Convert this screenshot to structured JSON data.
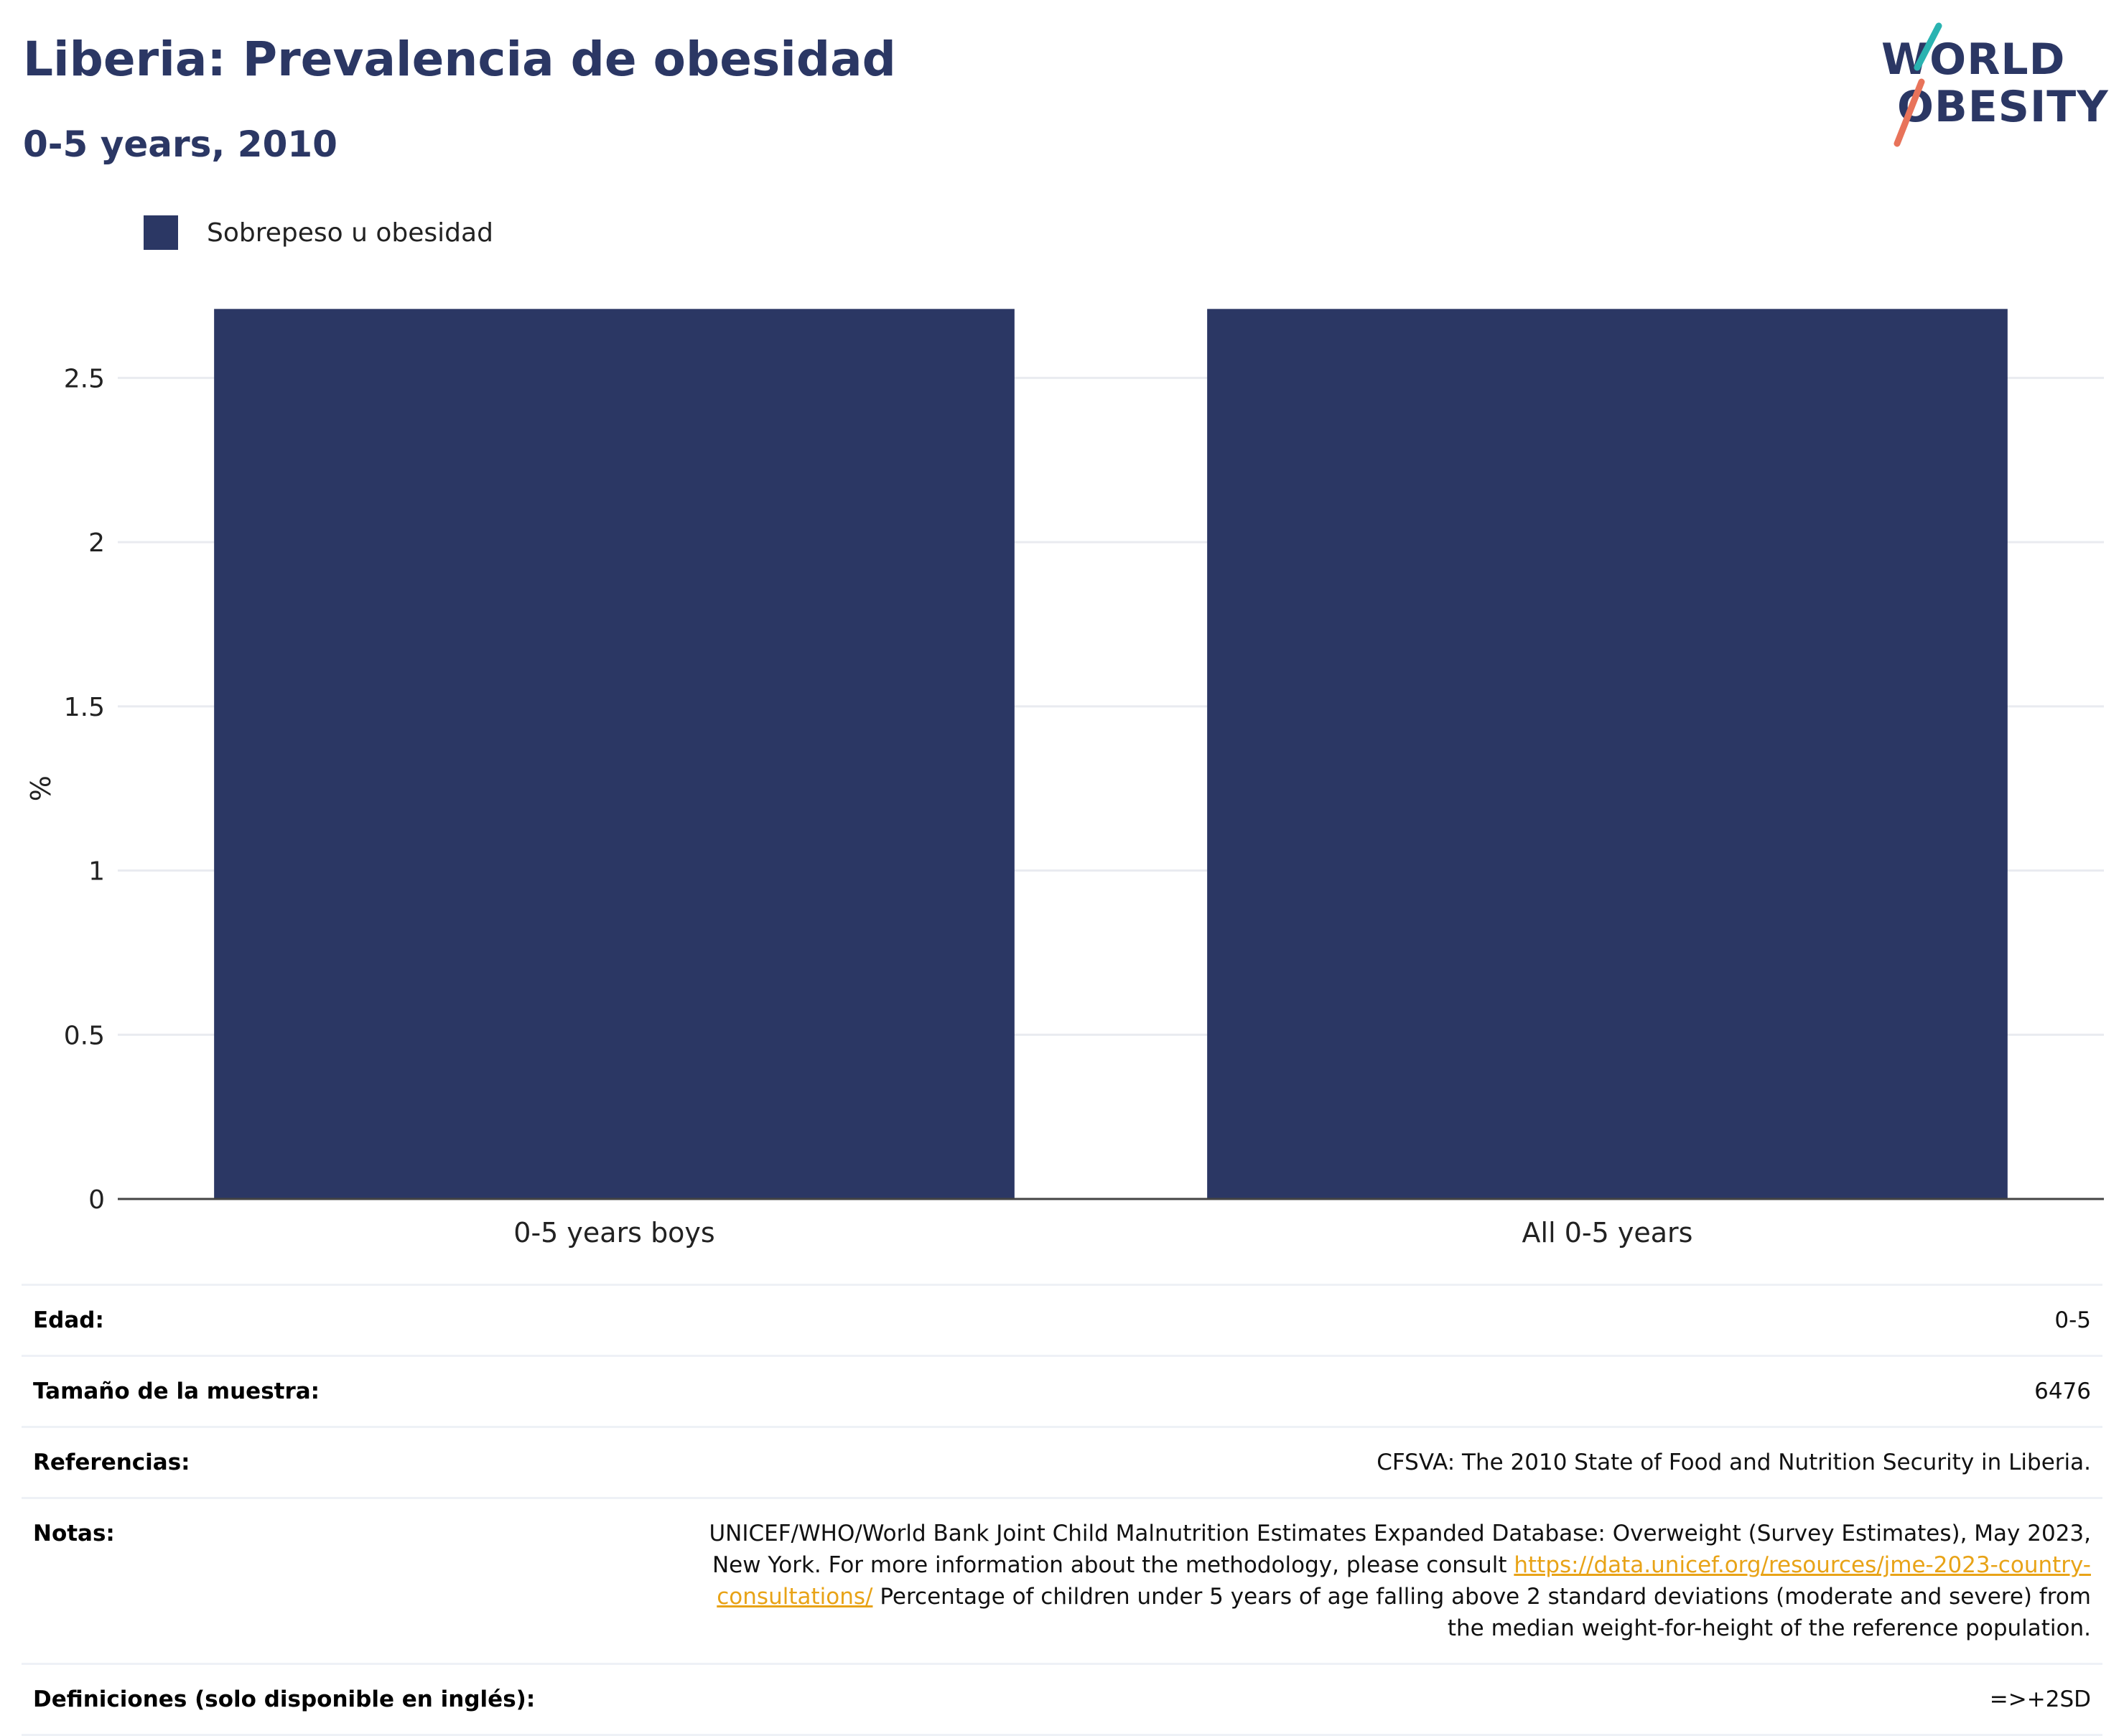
{
  "header": {
    "title": "Liberia: Prevalencia de obesidad",
    "subtitle": "0-5 years, 2010"
  },
  "logo": {
    "line1": "WORLD",
    "line2": "OBESITY",
    "colors": {
      "text": "#2b3764",
      "teal": "#2ab3b1",
      "coral": "#e8735a"
    }
  },
  "legend": {
    "items": [
      {
        "label": "Sobrepeso u obesidad",
        "color": "#2b3764"
      }
    ]
  },
  "chart_data": {
    "type": "bar",
    "categories": [
      "0-5 years boys",
      "All 0-5 years"
    ],
    "series": [
      {
        "name": "Sobrepeso u obesidad",
        "values": [
          2.71,
          2.71
        ],
        "color": "#2b3764"
      }
    ],
    "title": "",
    "xlabel": "",
    "ylabel": "%",
    "ylim": [
      0,
      2.82
    ],
    "yticks": [
      0,
      0.5,
      1,
      1.5,
      2,
      2.5
    ],
    "ytick_labels": [
      "0",
      "0.5",
      "1",
      "1.5",
      "2",
      "2.5"
    ],
    "grid": true,
    "legend_position": "top-left"
  },
  "info": {
    "edad": {
      "label": "Edad:",
      "value": "0-5"
    },
    "muestra": {
      "label": "Tamaño de la muestra:",
      "value": "6476"
    },
    "referencias": {
      "label": "Referencias:",
      "value": "CFSVA: The 2010 State of Food and Nutrition Security in Liberia."
    },
    "notas": {
      "label": "Notas:",
      "text1": "UNICEF/WHO/World Bank Joint Child Malnutrition Estimates Expanded Database: Overweight (Survey Estimates), May 2023, New York. For more information about the methodology, please consult ",
      "link": "https://data.unicef.org/resources/jme-2023-country-consultations/",
      "text2": " Percentage of children under 5 years of age falling above 2 standard deviations (moderate and severe) from the median weight-for-height of the reference population."
    },
    "definiciones": {
      "label": "Definiciones (solo disponible en inglés):",
      "value": "=>+2SD"
    }
  }
}
